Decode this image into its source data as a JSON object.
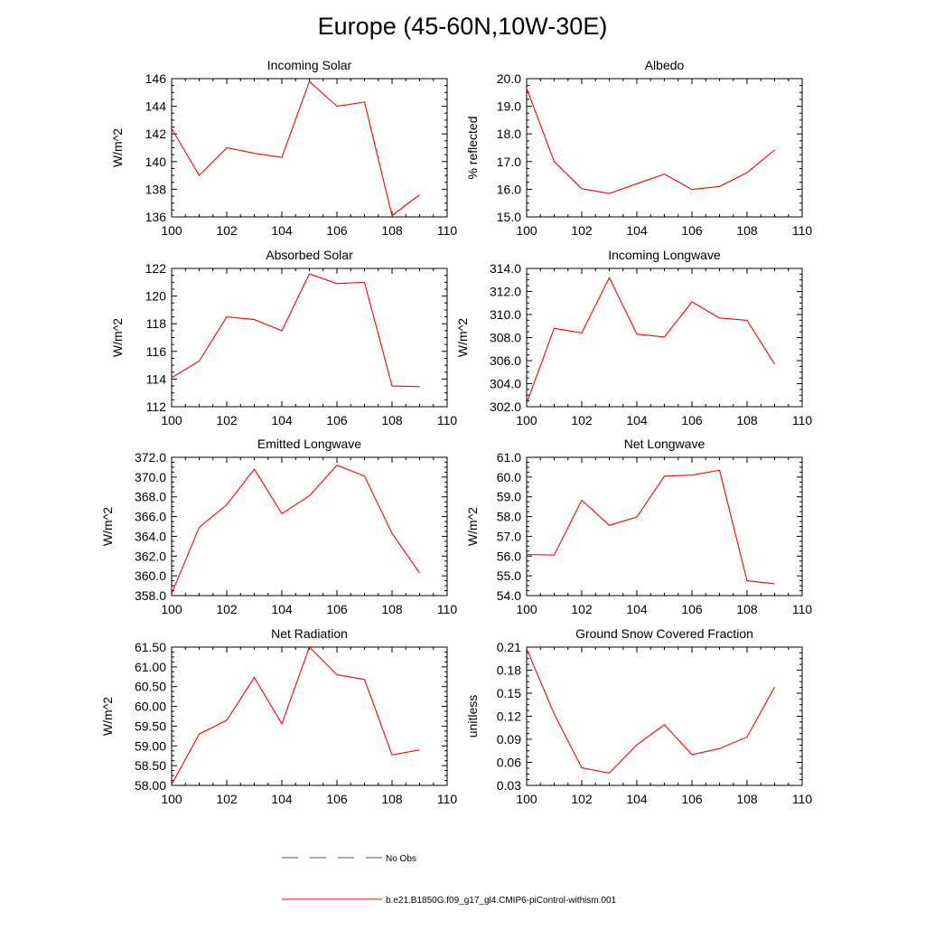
{
  "figure": {
    "title": "Europe (45-60N,10W-30E)",
    "line_color": "#ff0000",
    "obs_color": "#4a4aaa",
    "legend": [
      {
        "label": "No Obs",
        "style": "dashed"
      },
      {
        "label": "b.e21.B1850G.f09_g17_gl4.CMIP6-piControl-withism.001",
        "style": "solid"
      }
    ]
  },
  "chart_data": [
    {
      "type": "line",
      "title": "Incoming Solar",
      "xlabel": "",
      "ylabel": "W/m^2",
      "xlim": [
        100,
        110
      ],
      "ylim": [
        136,
        146
      ],
      "xticks": [
        "100",
        "102",
        "104",
        "106",
        "108",
        "110"
      ],
      "yticks": [
        "136",
        "138",
        "140",
        "142",
        "144",
        "146"
      ],
      "x": [
        100,
        101,
        102,
        103,
        104,
        105,
        106,
        107,
        108,
        109
      ],
      "y": [
        142.4,
        139.0,
        141.0,
        140.6,
        140.3,
        145.8,
        144.0,
        144.3,
        136.1,
        137.6
      ]
    },
    {
      "type": "line",
      "title": "Albedo",
      "xlabel": "",
      "ylabel": "% reflected",
      "xlim": [
        100,
        110
      ],
      "ylim": [
        15.0,
        20.0
      ],
      "xticks": [
        "100",
        "102",
        "104",
        "106",
        "108",
        "110"
      ],
      "yticks": [
        "15.0",
        "16.0",
        "17.0",
        "18.0",
        "19.0",
        "20.0"
      ],
      "x": [
        100,
        101,
        102,
        103,
        104,
        105,
        106,
        107,
        108,
        109
      ],
      "y": [
        19.65,
        17.0,
        16.02,
        15.85,
        16.2,
        16.55,
        15.99,
        16.1,
        16.6,
        17.42
      ]
    },
    {
      "type": "line",
      "title": "Absorbed Solar",
      "xlabel": "",
      "ylabel": "W/m^2",
      "xlim": [
        100,
        110
      ],
      "ylim": [
        112,
        122
      ],
      "xticks": [
        "100",
        "102",
        "104",
        "106",
        "108",
        "110"
      ],
      "yticks": [
        "112",
        "114",
        "116",
        "118",
        "120",
        "122"
      ],
      "x": [
        100,
        101,
        102,
        103,
        104,
        105,
        106,
        107,
        108,
        109
      ],
      "y": [
        114.1,
        115.3,
        118.5,
        118.3,
        117.5,
        121.6,
        120.9,
        121.0,
        113.5,
        113.45
      ]
    },
    {
      "type": "line",
      "title": "Incoming Longwave",
      "xlabel": "",
      "ylabel": "W/m^2",
      "xlim": [
        100,
        110
      ],
      "ylim": [
        302.0,
        314.0
      ],
      "xticks": [
        "100",
        "102",
        "104",
        "106",
        "108",
        "110"
      ],
      "yticks": [
        "302.0",
        "304.0",
        "306.0",
        "308.0",
        "310.0",
        "312.0",
        "314.0"
      ],
      "x": [
        100,
        101,
        102,
        103,
        104,
        105,
        106,
        107,
        108,
        109
      ],
      "y": [
        302.3,
        308.8,
        308.4,
        313.2,
        308.3,
        308.05,
        311.1,
        309.7,
        309.5,
        305.7
      ]
    },
    {
      "type": "line",
      "title": "Emitted Longwave",
      "xlabel": "",
      "ylabel": "W/m^2",
      "xlim": [
        100,
        110
      ],
      "ylim": [
        358.0,
        372.0
      ],
      "xticks": [
        "100",
        "102",
        "104",
        "106",
        "108",
        "110"
      ],
      "yticks": [
        "358.0",
        "360.0",
        "362.0",
        "364.0",
        "366.0",
        "368.0",
        "370.0",
        "372.0"
      ],
      "x": [
        100,
        101,
        102,
        103,
        104,
        105,
        106,
        107,
        108,
        109
      ],
      "y": [
        358.2,
        364.9,
        367.2,
        370.8,
        366.3,
        368.1,
        371.2,
        370.1,
        364.3,
        360.3
      ]
    },
    {
      "type": "line",
      "title": "Net Longwave",
      "xlabel": "",
      "ylabel": "W/m^2",
      "xlim": [
        100,
        110
      ],
      "ylim": [
        54.0,
        61.0
      ],
      "xticks": [
        "100",
        "102",
        "104",
        "106",
        "108",
        "110"
      ],
      "yticks": [
        "54.0",
        "55.0",
        "56.0",
        "57.0",
        "58.0",
        "59.0",
        "60.0",
        "61.0"
      ],
      "x": [
        100,
        101,
        102,
        103,
        104,
        105,
        106,
        107,
        108,
        109
      ],
      "y": [
        56.08,
        56.05,
        58.83,
        57.56,
        57.98,
        60.05,
        60.1,
        60.35,
        54.75,
        54.6
      ]
    },
    {
      "type": "line",
      "title": "Net Radiation",
      "xlabel": "",
      "ylabel": "W/m^2",
      "xlim": [
        100,
        110
      ],
      "ylim": [
        58.0,
        61.5
      ],
      "xticks": [
        "100",
        "102",
        "104",
        "106",
        "108",
        "110"
      ],
      "yticks": [
        "58.00",
        "58.50",
        "59.00",
        "59.50",
        "60.00",
        "60.50",
        "61.00",
        "61.50"
      ],
      "x": [
        100,
        101,
        102,
        103,
        104,
        105,
        106,
        107,
        108,
        109
      ],
      "y": [
        58.02,
        59.3,
        59.65,
        60.73,
        59.56,
        61.5,
        60.8,
        60.68,
        58.77,
        58.9
      ]
    },
    {
      "type": "line",
      "title": "Ground Snow Covered Fraction",
      "xlabel": "",
      "ylabel": "unitless",
      "xlim": [
        100,
        110
      ],
      "ylim": [
        0.03,
        0.21
      ],
      "xticks": [
        "100",
        "102",
        "104",
        "106",
        "108",
        "110"
      ],
      "yticks": [
        "0.03",
        "0.06",
        "0.09",
        "0.12",
        "0.15",
        "0.18",
        "0.21"
      ],
      "x": [
        100,
        101,
        102,
        103,
        104,
        105,
        106,
        107,
        108,
        109
      ],
      "y": [
        0.208,
        0.123,
        0.053,
        0.046,
        0.083,
        0.109,
        0.07,
        0.078,
        0.093,
        0.158
      ]
    }
  ]
}
